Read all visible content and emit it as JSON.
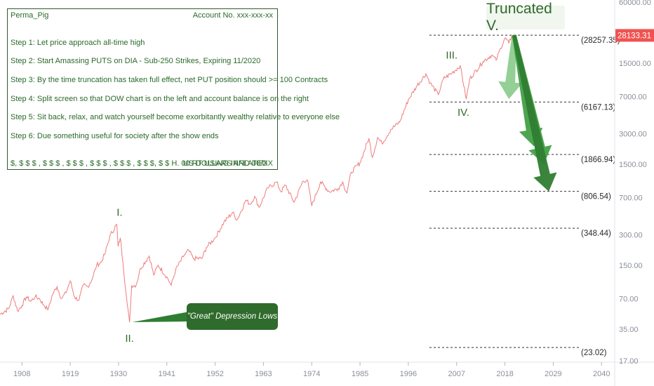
{
  "panel": {
    "author": "Perma_Pig",
    "account": "Account No. xxx-xxx-xx",
    "steps": [
      "Step 1: Let price approach all-time high",
      "Step 2: Start Amassing PUTS on DIA - Sub-250 Strikes, Expiring 11/2020",
      "Step 3: By the time truncation has taken full effect, net PUT position should >= 100 Contracts",
      "Step 4: Split screen so that DOW chart is on the left and account balance is on the right",
      "Step 5: Sit back, relax, and watch yourself become exorbitantly wealthy relative to everyone else",
      "Step 6: Due something useful for society after the show ends"
    ],
    "footer_left": "$, $ $ $ , $ $ $ , $ $ $ , $ $ $ , $ $ $ , $ $ $, $ $ H. 00.RT USING INFLATED",
    "footer_right": "US DOLLARS AND 00/XX"
  },
  "annotation_title": "Truncated V.",
  "callout_text": "\"Great\" Depression Lows",
  "current_price": "28133.31",
  "colors": {
    "price_line": "#ef7b7b",
    "price_badge": "#ef5350",
    "green_dark": "#2f7d32",
    "green_mid": "#43a047",
    "green_light": "#81c784",
    "panel_text": "#2a6a2a",
    "grid_dash": "#333333"
  },
  "chart_data": {
    "type": "line",
    "y_scale": "log",
    "x_ticks": [
      1908,
      1919,
      1930,
      1941,
      1952,
      1963,
      1974,
      1985,
      1996,
      2007,
      2018,
      2029,
      2040
    ],
    "y_ticks": [
      "60000.00",
      "15000.00",
      "7000.00",
      "3000.00",
      "1500.00",
      "700.00",
      "300.00",
      "150.00",
      "70.00",
      "35.00",
      "17.00"
    ],
    "xlim": [
      1903,
      2043
    ],
    "ylim": [
      16.5,
      63000
    ],
    "series": [
      {
        "points": [
          [
            1903,
            49
          ],
          [
            1905,
            56
          ],
          [
            1906,
            75
          ],
          [
            1907,
            53
          ],
          [
            1908,
            60
          ],
          [
            1909,
            73
          ],
          [
            1910,
            66
          ],
          [
            1911,
            73
          ],
          [
            1912,
            70
          ],
          [
            1913,
            60
          ],
          [
            1914,
            55
          ],
          [
            1915,
            78
          ],
          [
            1916,
            92
          ],
          [
            1917,
            70
          ],
          [
            1918,
            80
          ],
          [
            1919,
            105
          ],
          [
            1920,
            72
          ],
          [
            1921,
            68
          ],
          [
            1922,
            96
          ],
          [
            1923,
            92
          ],
          [
            1924,
            110
          ],
          [
            1925,
            150
          ],
          [
            1926,
            160
          ],
          [
            1927,
            200
          ],
          [
            1928,
            290
          ],
          [
            1929.6,
            381
          ],
          [
            1929.9,
            230
          ],
          [
            1930.4,
            280
          ],
          [
            1931,
            160
          ],
          [
            1932,
            60
          ],
          [
            1932.5,
            41
          ],
          [
            1933,
            95
          ],
          [
            1934,
            95
          ],
          [
            1935,
            140
          ],
          [
            1937,
            185
          ],
          [
            1938,
            120
          ],
          [
            1939,
            150
          ],
          [
            1941,
            115
          ],
          [
            1942,
            95
          ],
          [
            1943,
            135
          ],
          [
            1945,
            190
          ],
          [
            1946,
            210
          ],
          [
            1947,
            175
          ],
          [
            1949,
            175
          ],
          [
            1950,
            225
          ],
          [
            1952,
            280
          ],
          [
            1954,
            400
          ],
          [
            1956,
            500
          ],
          [
            1957,
            420
          ],
          [
            1959,
            660
          ],
          [
            1960,
            600
          ],
          [
            1961,
            720
          ],
          [
            1962,
            560
          ],
          [
            1964,
            870
          ],
          [
            1966,
            995
          ],
          [
            1967,
            800
          ],
          [
            1968,
            930
          ],
          [
            1970,
            630
          ],
          [
            1972,
            1020
          ],
          [
            1973,
            1050
          ],
          [
            1974,
            580
          ],
          [
            1976,
            1000
          ],
          [
            1978,
            800
          ],
          [
            1980,
            860
          ],
          [
            1981,
            1000
          ],
          [
            1982,
            780
          ],
          [
            1983,
            1250
          ],
          [
            1985,
            1550
          ],
          [
            1987,
            2700
          ],
          [
            1987.8,
            1750
          ],
          [
            1989,
            2750
          ],
          [
            1990,
            2400
          ],
          [
            1992,
            3300
          ],
          [
            1994,
            3900
          ],
          [
            1996,
            6500
          ],
          [
            1998,
            9000
          ],
          [
            2000,
            11700
          ],
          [
            2001,
            9500
          ],
          [
            2002.8,
            7300
          ],
          [
            2004,
            10500
          ],
          [
            2006,
            12000
          ],
          [
            2007.8,
            14100
          ],
          [
            2009.2,
            6600
          ],
          [
            2010,
            10500
          ],
          [
            2013,
            15500
          ],
          [
            2015,
            18000
          ],
          [
            2016,
            16000
          ],
          [
            2017,
            21000
          ],
          [
            2018,
            26500
          ],
          [
            2018.9,
            23500
          ],
          [
            2019.5,
            27500
          ],
          [
            2020.1,
            28257
          ],
          [
            2020.4,
            28133
          ]
        ]
      }
    ],
    "fib_levels": [
      {
        "value": 28257.35,
        "label": "(28257.35)"
      },
      {
        "value": 6167.13,
        "label": "(6167.13)"
      },
      {
        "value": 1866.94,
        "label": "(1866.94)"
      },
      {
        "value": 806.54,
        "label": "(806.54)"
      },
      {
        "value": 348.44,
        "label": "(348.44)"
      },
      {
        "value": 23.02,
        "label": "(23.02)"
      }
    ],
    "wave_labels": [
      {
        "text": "I.",
        "x": 1929.6,
        "y": 381
      },
      {
        "text": "II.",
        "x": 1932.5,
        "y": 41
      },
      {
        "text": "III.",
        "x": 2007.8,
        "y": 14100
      },
      {
        "text": "IV.",
        "x": 2009.2,
        "y": 6600
      }
    ],
    "projection_arrows": [
      {
        "from": [
          2020.1,
          28257
        ],
        "to": [
          2018.9,
          6600
        ]
      },
      {
        "from": [
          2020.1,
          28257
        ],
        "to": [
          2024.6,
          2250
        ]
      },
      {
        "from": [
          2020.1,
          28257
        ],
        "to": [
          2026.9,
          1500
        ]
      },
      {
        "from": [
          2020.1,
          28257
        ],
        "to": [
          2028.0,
          806.54
        ]
      }
    ]
  }
}
